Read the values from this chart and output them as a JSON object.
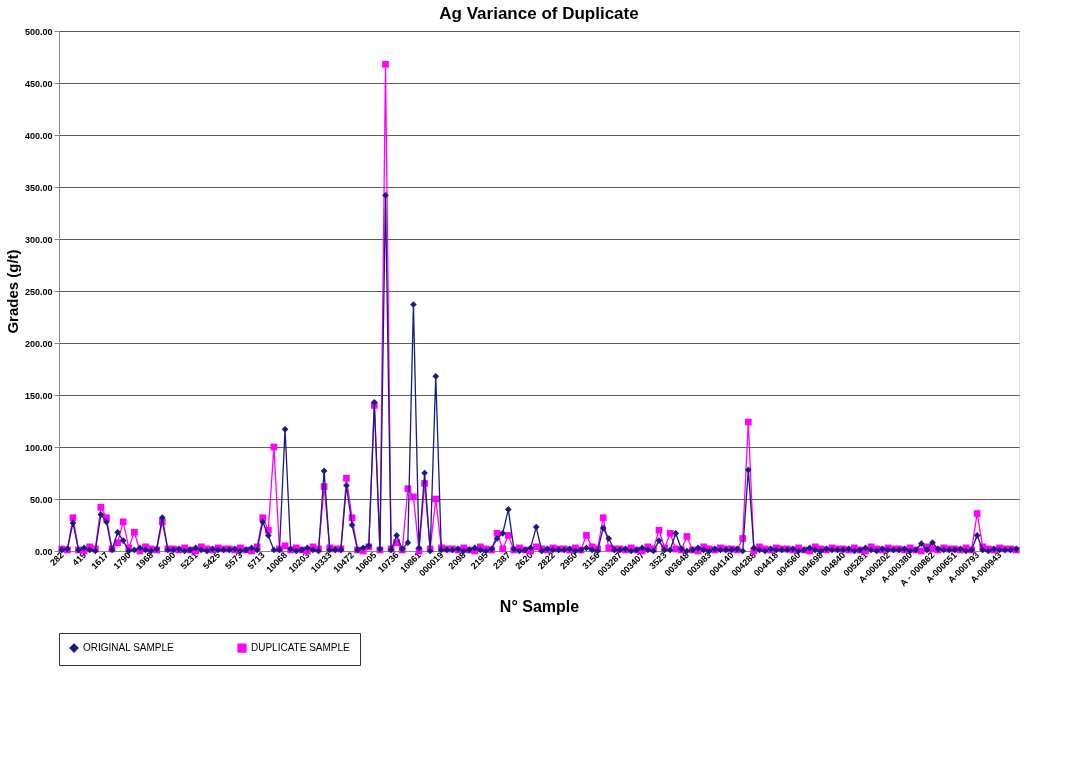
{
  "chart_data": {
    "type": "line",
    "title": "Ag Variance of Duplicate",
    "xlabel": "N° Sample",
    "ylabel": "Grades (g/t)",
    "categories": [
      "282",
      null,
      null,
      null,
      "419",
      null,
      null,
      null,
      "1617",
      null,
      null,
      null,
      "1790",
      null,
      null,
      null,
      "1968",
      null,
      null,
      null,
      "5090",
      null,
      null,
      null,
      "5231",
      null,
      null,
      null,
      "5425",
      null,
      null,
      null,
      "5573",
      null,
      null,
      null,
      "5713",
      null,
      null,
      null,
      "10068",
      null,
      null,
      null,
      "10203",
      null,
      null,
      null,
      "10333",
      null,
      null,
      null,
      "10472",
      null,
      null,
      null,
      "10605",
      null,
      null,
      null,
      "10736",
      null,
      null,
      null,
      "10861",
      null,
      null,
      null,
      "000019",
      null,
      null,
      null,
      "2098",
      null,
      null,
      null,
      "2195",
      null,
      null,
      null,
      "2387",
      null,
      null,
      null,
      "2620",
      null,
      null,
      null,
      "2822",
      null,
      null,
      null,
      "2950",
      null,
      null,
      null,
      "3156",
      null,
      null,
      null,
      "003287",
      null,
      null,
      null,
      "003407",
      null,
      null,
      null,
      "3523",
      null,
      null,
      null,
      "003648",
      null,
      null,
      null,
      "003983",
      null,
      null,
      null,
      "004140",
      null,
      null,
      null,
      "004288",
      null,
      null,
      null,
      "004418",
      null,
      null,
      null,
      "004560",
      null,
      null,
      null,
      "004698",
      null,
      null,
      null,
      "004840",
      null,
      null,
      null,
      "005281",
      null,
      null,
      null,
      "A-000202",
      null,
      null,
      null,
      "A-000380",
      null,
      null,
      null,
      "A - 000862",
      null,
      null,
      null,
      "A-000651",
      null,
      null,
      null,
      "A-000793",
      null,
      null,
      null,
      "A-000943",
      null,
      null,
      null
    ],
    "series": [
      {
        "name": "ORIGINAL SAMPLE",
        "color": "#1c1c7c",
        "marker": "diamond",
        "values": [
          1,
          2,
          27,
          1,
          3,
          1,
          0,
          35,
          28,
          1,
          18,
          10,
          0,
          1,
          3,
          1,
          0,
          2,
          32,
          1,
          1,
          2,
          0,
          1,
          3,
          1,
          0,
          2,
          1,
          1,
          1,
          2,
          0,
          1,
          3,
          1,
          28,
          15,
          1,
          1,
          117,
          2,
          0,
          1,
          3,
          1,
          0,
          77,
          1,
          1,
          1,
          63,
          25,
          1,
          3,
          5,
          143,
          2,
          342,
          1,
          15,
          2,
          8,
          237,
          3,
          75,
          0,
          168,
          1,
          1,
          1,
          2,
          0,
          1,
          3,
          1,
          0,
          2,
          12,
          17,
          40,
          2,
          0,
          1,
          3,
          23,
          0,
          2,
          1,
          1,
          1,
          2,
          0,
          1,
          3,
          1,
          0,
          22,
          12,
          1,
          1,
          2,
          0,
          1,
          3,
          1,
          0,
          10,
          1,
          1,
          17,
          2,
          0,
          1,
          3,
          1,
          0,
          2,
          1,
          1,
          1,
          2,
          0,
          78,
          3,
          1,
          0,
          2,
          1,
          1,
          1,
          2,
          0,
          1,
          3,
          1,
          0,
          2,
          1,
          1,
          1,
          2,
          0,
          1,
          3,
          1,
          0,
          2,
          1,
          1,
          1,
          2,
          0,
          1,
          7,
          1,
          8,
          2,
          1,
          1,
          1,
          2,
          0,
          1,
          15,
          1,
          0,
          2,
          1,
          1,
          1,
          2
        ]
      },
      {
        "name": "DUPLICATE SAMPLE",
        "color": "#ff00ff",
        "marker": "square",
        "values": [
          2,
          1,
          32,
          1,
          0,
          4,
          2,
          42,
          32,
          2,
          8,
          28,
          3,
          18,
          0,
          4,
          2,
          1,
          28,
          2,
          2,
          1,
          3,
          1,
          0,
          4,
          2,
          1,
          3,
          2,
          2,
          1,
          3,
          1,
          0,
          4,
          32,
          20,
          100,
          2,
          5,
          1,
          3,
          1,
          0,
          4,
          2,
          62,
          3,
          2,
          2,
          70,
          32,
          1,
          0,
          4,
          140,
          1,
          468,
          2,
          8,
          1,
          60,
          52,
          0,
          65,
          2,
          50,
          3,
          2,
          2,
          1,
          3,
          1,
          0,
          4,
          2,
          1,
          17,
          2,
          15,
          1,
          3,
          1,
          0,
          4,
          2,
          1,
          3,
          2,
          2,
          1,
          3,
          1,
          15,
          4,
          2,
          32,
          3,
          2,
          2,
          1,
          3,
          1,
          0,
          4,
          2,
          20,
          3,
          17,
          2,
          1,
          14,
          1,
          0,
          4,
          2,
          1,
          3,
          2,
          2,
          1,
          12,
          124,
          0,
          4,
          2,
          1,
          3,
          2,
          2,
          1,
          3,
          1,
          0,
          4,
          2,
          1,
          3,
          2,
          2,
          1,
          3,
          1,
          0,
          4,
          2,
          1,
          3,
          2,
          2,
          1,
          3,
          1,
          0,
          4,
          2,
          1,
          3,
          2,
          2,
          1,
          3,
          1,
          36,
          4,
          2,
          1,
          3,
          2,
          2,
          1
        ]
      }
    ],
    "ylim": [
      0,
      500
    ],
    "yticks": [
      {
        "value": 0,
        "label": "0.00"
      },
      {
        "value": 50,
        "label": "50.00"
      },
      {
        "value": 100,
        "label": "100.00"
      },
      {
        "value": 150,
        "label": "150.00"
      },
      {
        "value": 200,
        "label": "200.00"
      },
      {
        "value": 250,
        "label": "250.00"
      },
      {
        "value": 300,
        "label": "300.00"
      },
      {
        "value": 350,
        "label": "350.00"
      },
      {
        "value": 400,
        "label": "400.00"
      },
      {
        "value": 450,
        "label": "450.00"
      },
      {
        "value": 500,
        "label": "500.00"
      }
    ],
    "grid": "y",
    "legend": "bottom",
    "line_style": "solid"
  }
}
